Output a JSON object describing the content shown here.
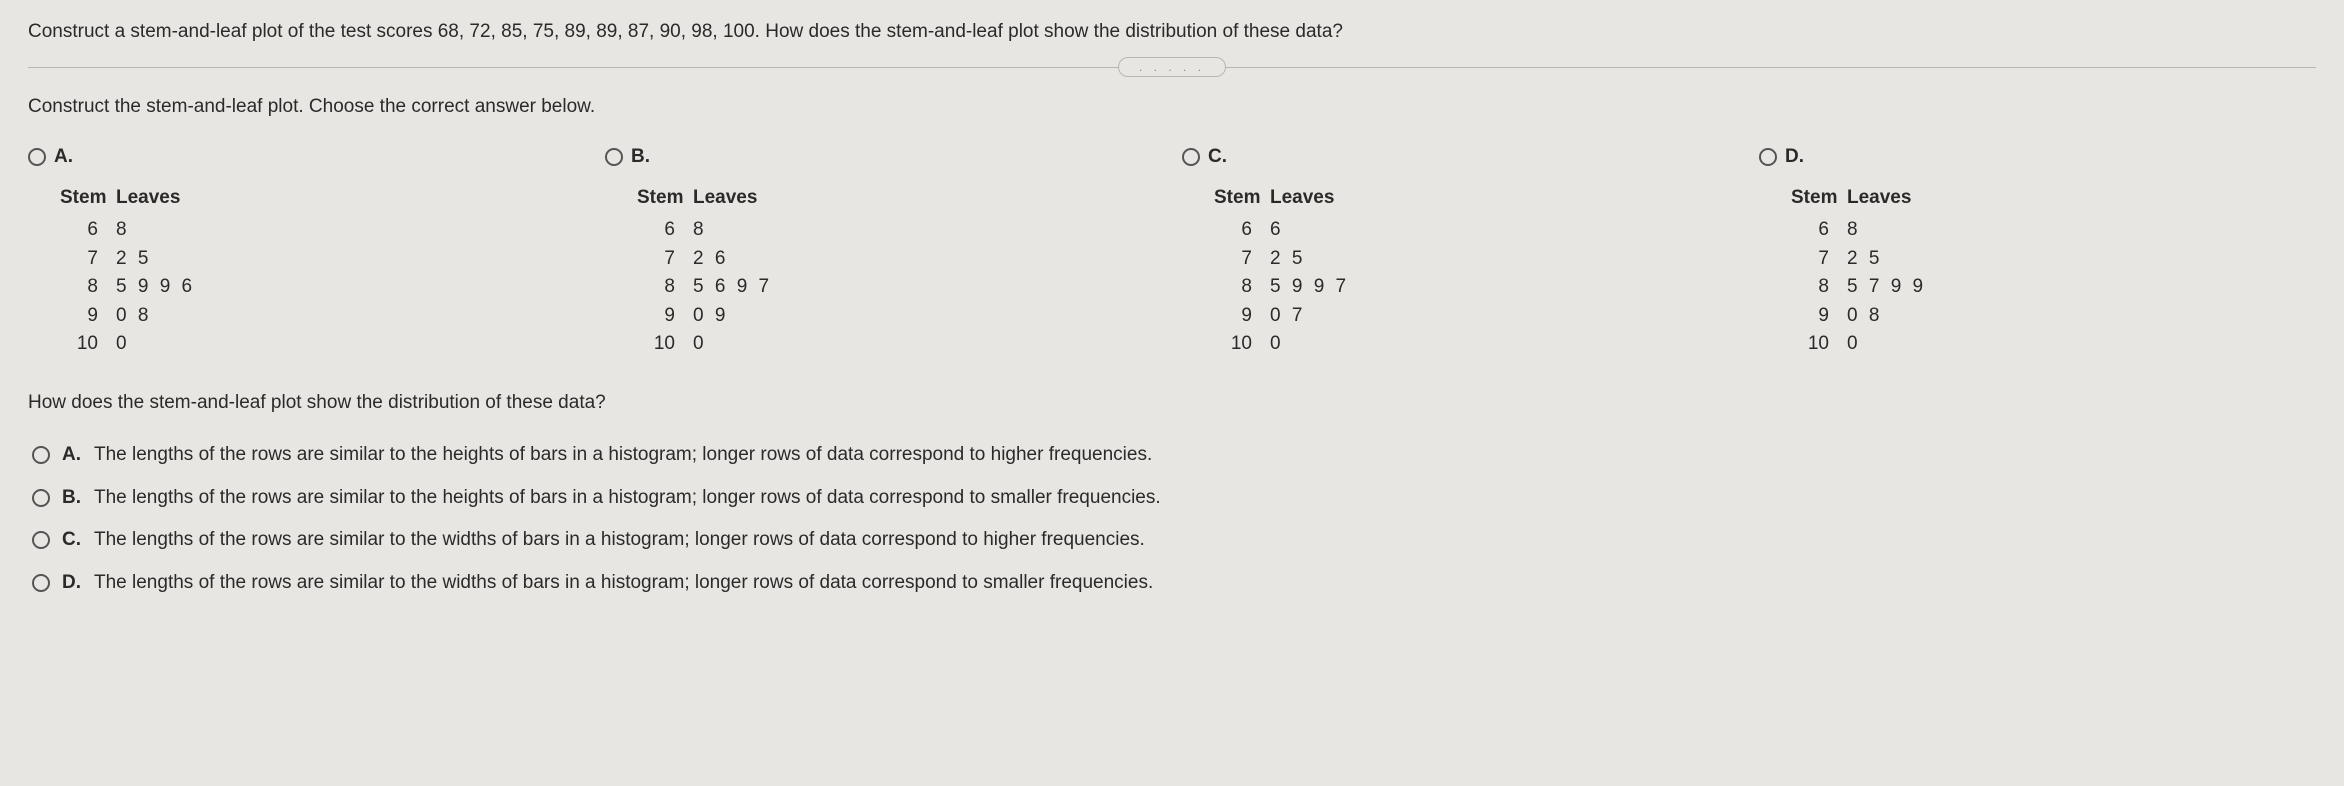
{
  "question": "Construct a stem-and-leaf plot of the test scores 68, 72, 85, 75, 89, 89, 87, 90, 98, 100. How does the stem-and-leaf plot show the distribution of these data?",
  "subprompt": "Construct the stem-and-leaf plot. Choose the correct answer below.",
  "pill": ". . . . .",
  "head_stem": "Stem",
  "head_leaves": "Leaves",
  "optA": {
    "label": "A.",
    "rows": [
      {
        "stem": "6",
        "leaves": "8"
      },
      {
        "stem": "7",
        "leaves": "2 5"
      },
      {
        "stem": "8",
        "leaves": "5 9 9 6"
      },
      {
        "stem": "9",
        "leaves": "0 8"
      },
      {
        "stem": "10",
        "leaves": "0"
      }
    ]
  },
  "optB": {
    "label": "B.",
    "rows": [
      {
        "stem": "6",
        "leaves": "8"
      },
      {
        "stem": "7",
        "leaves": "2 6"
      },
      {
        "stem": "8",
        "leaves": "5 6 9 7"
      },
      {
        "stem": "9",
        "leaves": "0 9"
      },
      {
        "stem": "10",
        "leaves": "0"
      }
    ]
  },
  "optC": {
    "label": "C.",
    "rows": [
      {
        "stem": "6",
        "leaves": "6"
      },
      {
        "stem": "7",
        "leaves": "2 5"
      },
      {
        "stem": "8",
        "leaves": "5 9 9 7"
      },
      {
        "stem": "9",
        "leaves": "0 7"
      },
      {
        "stem": "10",
        "leaves": "0"
      }
    ]
  },
  "optD": {
    "label": "D.",
    "rows": [
      {
        "stem": "6",
        "leaves": "8"
      },
      {
        "stem": "7",
        "leaves": "2 5"
      },
      {
        "stem": "8",
        "leaves": "5 7 9 9"
      },
      {
        "stem": "9",
        "leaves": "0 8"
      },
      {
        "stem": "10",
        "leaves": "0"
      }
    ]
  },
  "followup": "How does the stem-and-leaf plot show the distribution of these data?",
  "mcA": {
    "label": "A.",
    "text": "The lengths of the rows are similar to the heights of bars in a histogram; longer rows of data correspond to higher frequencies."
  },
  "mcB": {
    "label": "B.",
    "text": "The lengths of the rows are similar to the heights of bars in a histogram; longer rows of data correspond to smaller frequencies."
  },
  "mcC": {
    "label": "C.",
    "text": "The lengths of the rows are similar to the widths of bars in a histogram; longer rows of data correspond to higher frequencies."
  },
  "mcD": {
    "label": "D.",
    "text": "The lengths of the rows are similar to the widths of bars in a histogram; longer rows of data correspond to smaller frequencies."
  }
}
